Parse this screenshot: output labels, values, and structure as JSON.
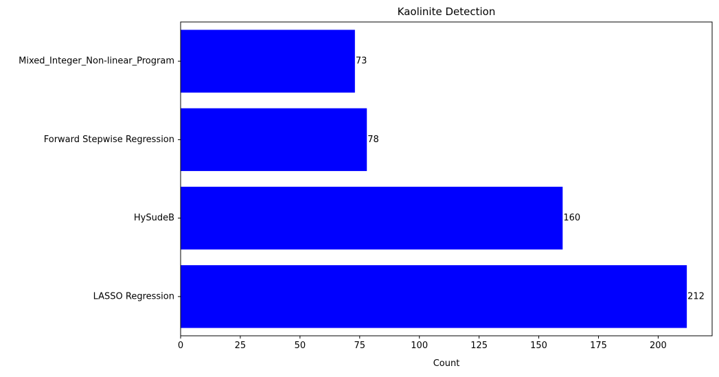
{
  "chart_data": {
    "type": "bar",
    "orientation": "horizontal",
    "title": "Kaolinite Detection",
    "xlabel": "Count",
    "ylabel": "",
    "categories": [
      "LASSO Regression",
      "HySudeB",
      "Forward Stepwise Regression",
      "Mixed_Integer_Non-linear_Program"
    ],
    "values": [
      212,
      160,
      78,
      73
    ],
    "data_labels": [
      "212",
      "160",
      "78",
      "73"
    ],
    "xlim": [
      0,
      222.6
    ],
    "xticks": [
      0,
      25,
      50,
      75,
      100,
      125,
      150,
      175,
      200
    ],
    "xtick_labels": [
      "0",
      "25",
      "50",
      "75",
      "100",
      "125",
      "150",
      "175",
      "200"
    ],
    "bar_color": "#0000ff",
    "grid": false,
    "legend": "none"
  }
}
